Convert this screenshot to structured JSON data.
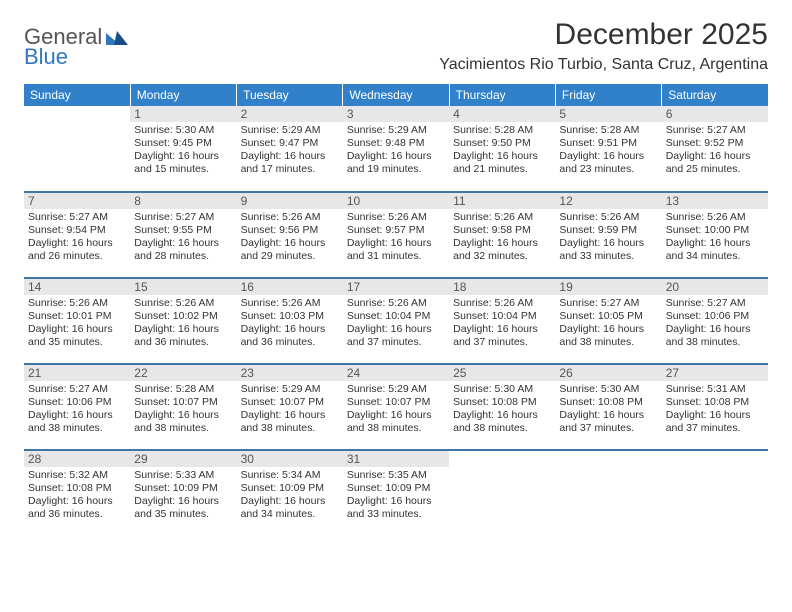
{
  "logo": {
    "general": "General",
    "blue": "Blue"
  },
  "title": "December 2025",
  "location": "Yacimientos Rio Turbio, Santa Cruz, Argentina",
  "colors": {
    "header_bg": "#3081c9",
    "header_text": "#ffffff",
    "row_divider": "#3c77a8",
    "daynum_bg": "#e7e7e7",
    "text": "#333333",
    "logo_gray": "#555555",
    "logo_blue": "#2f78bd"
  },
  "day_headers": [
    "Sunday",
    "Monday",
    "Tuesday",
    "Wednesday",
    "Thursday",
    "Friday",
    "Saturday"
  ],
  "weeks": [
    [
      null,
      {
        "n": "1",
        "sr": "5:30 AM",
        "ss": "9:45 PM",
        "dl": "16 hours and 15 minutes."
      },
      {
        "n": "2",
        "sr": "5:29 AM",
        "ss": "9:47 PM",
        "dl": "16 hours and 17 minutes."
      },
      {
        "n": "3",
        "sr": "5:29 AM",
        "ss": "9:48 PM",
        "dl": "16 hours and 19 minutes."
      },
      {
        "n": "4",
        "sr": "5:28 AM",
        "ss": "9:50 PM",
        "dl": "16 hours and 21 minutes."
      },
      {
        "n": "5",
        "sr": "5:28 AM",
        "ss": "9:51 PM",
        "dl": "16 hours and 23 minutes."
      },
      {
        "n": "6",
        "sr": "5:27 AM",
        "ss": "9:52 PM",
        "dl": "16 hours and 25 minutes."
      }
    ],
    [
      {
        "n": "7",
        "sr": "5:27 AM",
        "ss": "9:54 PM",
        "dl": "16 hours and 26 minutes."
      },
      {
        "n": "8",
        "sr": "5:27 AM",
        "ss": "9:55 PM",
        "dl": "16 hours and 28 minutes."
      },
      {
        "n": "9",
        "sr": "5:26 AM",
        "ss": "9:56 PM",
        "dl": "16 hours and 29 minutes."
      },
      {
        "n": "10",
        "sr": "5:26 AM",
        "ss": "9:57 PM",
        "dl": "16 hours and 31 minutes."
      },
      {
        "n": "11",
        "sr": "5:26 AM",
        "ss": "9:58 PM",
        "dl": "16 hours and 32 minutes."
      },
      {
        "n": "12",
        "sr": "5:26 AM",
        "ss": "9:59 PM",
        "dl": "16 hours and 33 minutes."
      },
      {
        "n": "13",
        "sr": "5:26 AM",
        "ss": "10:00 PM",
        "dl": "16 hours and 34 minutes."
      }
    ],
    [
      {
        "n": "14",
        "sr": "5:26 AM",
        "ss": "10:01 PM",
        "dl": "16 hours and 35 minutes."
      },
      {
        "n": "15",
        "sr": "5:26 AM",
        "ss": "10:02 PM",
        "dl": "16 hours and 36 minutes."
      },
      {
        "n": "16",
        "sr": "5:26 AM",
        "ss": "10:03 PM",
        "dl": "16 hours and 36 minutes."
      },
      {
        "n": "17",
        "sr": "5:26 AM",
        "ss": "10:04 PM",
        "dl": "16 hours and 37 minutes."
      },
      {
        "n": "18",
        "sr": "5:26 AM",
        "ss": "10:04 PM",
        "dl": "16 hours and 37 minutes."
      },
      {
        "n": "19",
        "sr": "5:27 AM",
        "ss": "10:05 PM",
        "dl": "16 hours and 38 minutes."
      },
      {
        "n": "20",
        "sr": "5:27 AM",
        "ss": "10:06 PM",
        "dl": "16 hours and 38 minutes."
      }
    ],
    [
      {
        "n": "21",
        "sr": "5:27 AM",
        "ss": "10:06 PM",
        "dl": "16 hours and 38 minutes."
      },
      {
        "n": "22",
        "sr": "5:28 AM",
        "ss": "10:07 PM",
        "dl": "16 hours and 38 minutes."
      },
      {
        "n": "23",
        "sr": "5:29 AM",
        "ss": "10:07 PM",
        "dl": "16 hours and 38 minutes."
      },
      {
        "n": "24",
        "sr": "5:29 AM",
        "ss": "10:07 PM",
        "dl": "16 hours and 38 minutes."
      },
      {
        "n": "25",
        "sr": "5:30 AM",
        "ss": "10:08 PM",
        "dl": "16 hours and 38 minutes."
      },
      {
        "n": "26",
        "sr": "5:30 AM",
        "ss": "10:08 PM",
        "dl": "16 hours and 37 minutes."
      },
      {
        "n": "27",
        "sr": "5:31 AM",
        "ss": "10:08 PM",
        "dl": "16 hours and 37 minutes."
      }
    ],
    [
      {
        "n": "28",
        "sr": "5:32 AM",
        "ss": "10:08 PM",
        "dl": "16 hours and 36 minutes."
      },
      {
        "n": "29",
        "sr": "5:33 AM",
        "ss": "10:09 PM",
        "dl": "16 hours and 35 minutes."
      },
      {
        "n": "30",
        "sr": "5:34 AM",
        "ss": "10:09 PM",
        "dl": "16 hours and 34 minutes."
      },
      {
        "n": "31",
        "sr": "5:35 AM",
        "ss": "10:09 PM",
        "dl": "16 hours and 33 minutes."
      },
      null,
      null,
      null
    ]
  ],
  "labels": {
    "sunrise": "Sunrise:",
    "sunset": "Sunset:",
    "daylight": "Daylight:"
  }
}
